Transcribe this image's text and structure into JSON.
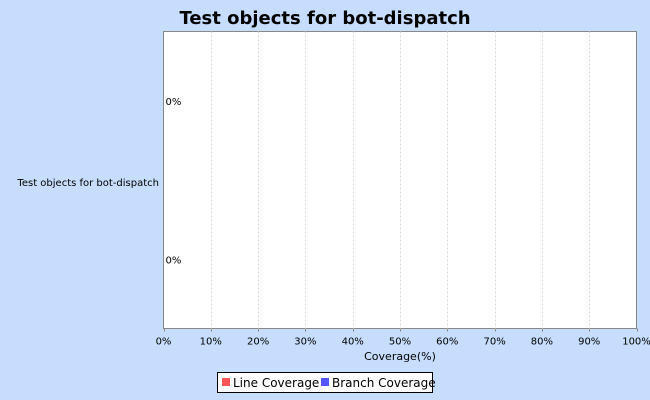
{
  "chart_data": {
    "type": "bar",
    "orientation": "horizontal",
    "title": "Test objects for bot-dispatch",
    "categories": [
      "Test objects for bot-dispatch"
    ],
    "series": [
      {
        "name": "Line Coverage",
        "values": [
          0
        ],
        "color": "#ff5555",
        "label": "0%"
      },
      {
        "name": "Branch Coverage",
        "values": [
          0
        ],
        "color": "#5555ff",
        "label": "0%"
      }
    ],
    "xlabel": "Coverage(%)",
    "ylabel": "",
    "xlim": [
      0,
      100
    ],
    "xticks": [
      0,
      10,
      20,
      30,
      40,
      50,
      60,
      70,
      80,
      90,
      100
    ],
    "xtick_labels": [
      "0%",
      "10%",
      "20%",
      "30%",
      "40%",
      "50%",
      "60%",
      "70%",
      "80%",
      "90%",
      "100%"
    ],
    "grid": true,
    "legend_position": "bottom-center",
    "background_color": "#c6ddfd",
    "plot_background_color": "#ffffff",
    "gridline_color": "#d8d8d8"
  }
}
